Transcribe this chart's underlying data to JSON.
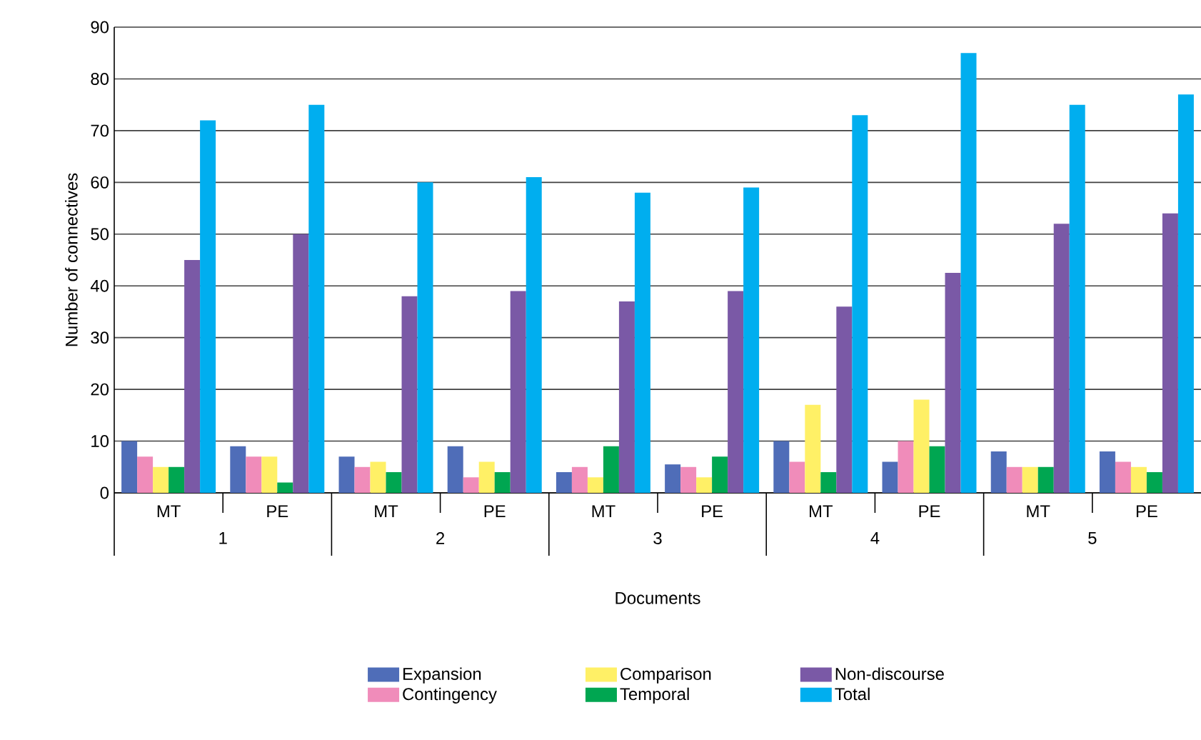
{
  "chart_data": {
    "type": "bar",
    "xlabel": "Documents",
    "ylabel": "Number of connectives",
    "categories": [
      "MT",
      "PE",
      "MT",
      "PE",
      "MT",
      "PE",
      "MT",
      "PE",
      "MT",
      "PE"
    ],
    "annotations": [
      "1",
      "2",
      "3",
      "4",
      "5"
    ],
    "series": [
      {
        "name": "Expansion",
        "color": "#4f6db8",
        "values": [
          10,
          9,
          7,
          9,
          4,
          5.5,
          10,
          6,
          8,
          8
        ]
      },
      {
        "name": "Contingency",
        "color": "#f08cba",
        "values": [
          7,
          7,
          5,
          3,
          5,
          5,
          6,
          10,
          5,
          6
        ]
      },
      {
        "name": "Comparison",
        "color": "#fff066",
        "values": [
          5,
          7,
          6,
          6,
          3,
          3,
          17,
          18,
          5,
          5
        ]
      },
      {
        "name": "Temporal",
        "color": "#00a651",
        "values": [
          5,
          2,
          4,
          4,
          9,
          7,
          4,
          9,
          5,
          4
        ]
      },
      {
        "name": "Non-discourse",
        "color": "#7a59a6",
        "values": [
          45,
          50,
          38,
          39,
          37,
          39,
          36,
          42.5,
          52,
          54
        ]
      },
      {
        "name": "Total",
        "color": "#00aeef",
        "values": [
          72,
          75,
          60,
          61,
          58,
          59,
          73,
          85,
          75,
          77
        ]
      }
    ],
    "ylim": [
      0,
      90
    ],
    "yticks": [
      0,
      10,
      20,
      30,
      40,
      50,
      60,
      70,
      80,
      90
    ],
    "grid": "y",
    "legend": "bottom"
  }
}
